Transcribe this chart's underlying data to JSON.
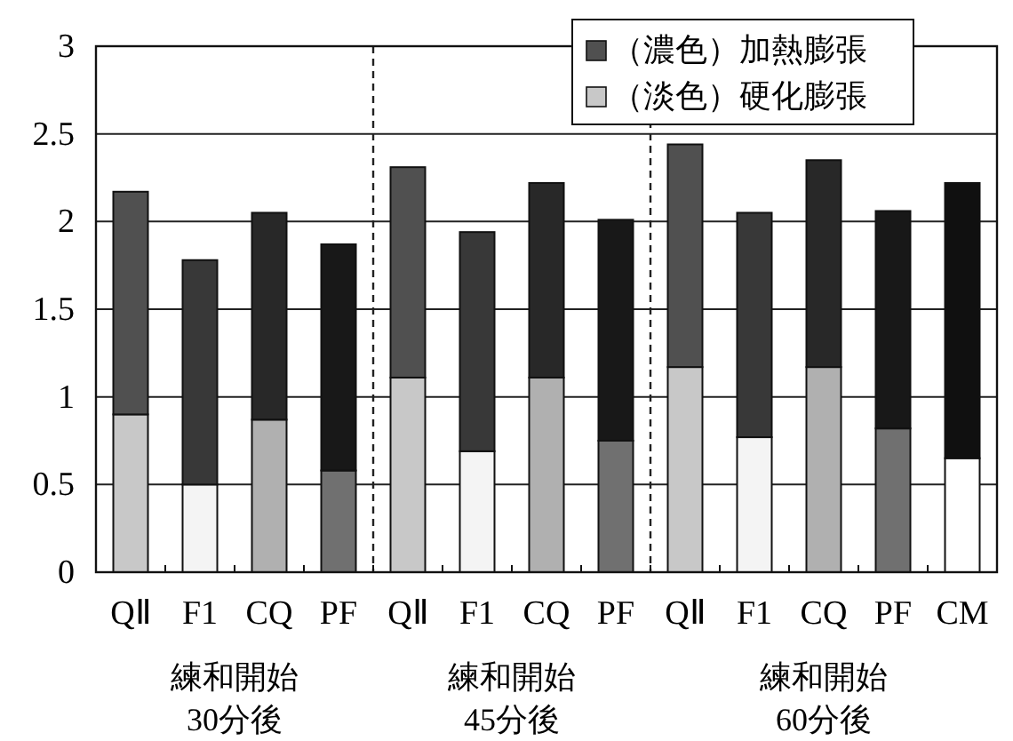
{
  "chart_data": {
    "type": "bar",
    "stacked": true,
    "categories": [
      "QⅡ",
      "F1",
      "CQ",
      "PF",
      "QⅡ",
      "F1",
      "CQ",
      "PF",
      "QⅡ",
      "F1",
      "CQ",
      "PF",
      "CM"
    ],
    "series": [
      {
        "name": "（淡色）硬化膨張",
        "color": "#c8c8c8",
        "colors": [
          "#c8c8c8",
          "#f4f4f4",
          "#b0b0b0",
          "#707070",
          "#c8c8c8",
          "#f4f4f4",
          "#b0b0b0",
          "#707070",
          "#c8c8c8",
          "#f4f4f4",
          "#b0b0b0",
          "#707070",
          "#ffffff"
        ],
        "values": [
          0.9,
          0.5,
          0.87,
          0.58,
          1.11,
          0.69,
          1.11,
          0.75,
          1.17,
          0.77,
          1.17,
          0.82,
          0.65
        ]
      },
      {
        "name": "（濃色）加熱膨張",
        "color": "#505050",
        "colors": [
          "#505050",
          "#383838",
          "#282828",
          "#181818",
          "#505050",
          "#383838",
          "#282828",
          "#181818",
          "#505050",
          "#383838",
          "#282828",
          "#181818",
          "#101010"
        ],
        "values": [
          1.27,
          1.28,
          1.18,
          1.29,
          1.2,
          1.25,
          1.11,
          1.26,
          1.27,
          1.28,
          1.18,
          1.24,
          1.57
        ]
      }
    ],
    "ylim": [
      0,
      3
    ],
    "yticks": [
      0,
      0.5,
      1,
      1.5,
      2,
      2.5,
      3
    ],
    "grid": "y",
    "legend": "top right",
    "annotations": [
      "練和開始\n30分後",
      "練和開始\n45分後",
      "練和開始\n60分後"
    ]
  }
}
